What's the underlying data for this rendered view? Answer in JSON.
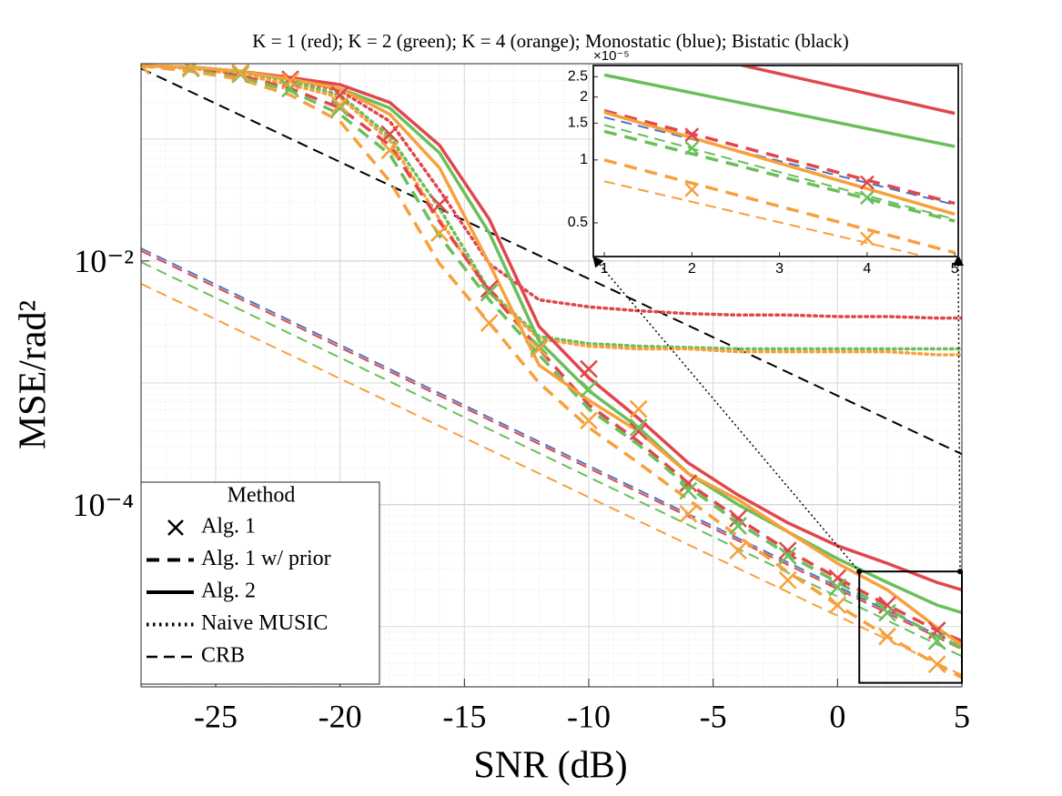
{
  "chart_data": {
    "type": "line",
    "title": "K = 1 (red); K = 2 (green); K = 4 (orange); Monostatic (blue); Bistatic (black)",
    "x_label": "SNR (dB)",
    "y_label": "MSE/rad²",
    "xlim": [
      -28,
      5
    ],
    "xticks": [
      -25,
      -20,
      -15,
      -10,
      -5,
      0,
      5
    ],
    "ylim": [
      3.2e-06,
      0.416
    ],
    "yticks": [
      {
        "value": 0.01,
        "label": "10⁻²"
      },
      {
        "value": 0.0001,
        "label": "10⁻⁴"
      }
    ],
    "log_y": true,
    "grid": true,
    "legend": {
      "title": "Method",
      "corner": "lower-left",
      "entries": [
        {
          "label": "Alg. 1",
          "style": "marker"
        },
        {
          "label": "Alg. 1 w/ prior",
          "style": "prior"
        },
        {
          "label": "Alg. 2",
          "style": "alg2"
        },
        {
          "label": "Naive MUSIC",
          "style": "music"
        },
        {
          "label": "CRB",
          "style": "crb"
        }
      ]
    },
    "zoom_region": {
      "xlim": [
        0.875,
        5
      ],
      "ylim": [
        3.45e-06,
        2.83e-05
      ]
    },
    "series": [
      {
        "color": "#4a78bd",
        "style": "crb",
        "x": [
          -28,
          5
        ],
        "values": [
          0.0127,
          6.8e-06
        ]
      },
      {
        "color": "#e0474c",
        "style": "crb",
        "x": [
          -28,
          5
        ],
        "values": [
          0.0121,
          6.5e-06
        ]
      },
      {
        "color": "#6bbf5b",
        "style": "crb",
        "x": [
          -28,
          5
        ],
        "values": [
          0.0098,
          5.7e-06
        ]
      },
      {
        "color": "#f7a03c",
        "style": "crb",
        "x": [
          -28,
          5
        ],
        "values": [
          0.0065,
          4e-06
        ]
      },
      {
        "color": "#000000",
        "style": "crb",
        "x": [
          -28,
          5
        ],
        "values": [
          0.38,
          0.00026
        ]
      },
      {
        "color": "#e0474c",
        "style": "music",
        "x": [
          -28,
          -26,
          -24,
          -22,
          -20,
          -18,
          -16,
          -14,
          -12,
          -10,
          -8,
          -6,
          -4,
          -2,
          0,
          2,
          4,
          5
        ],
        "values": [
          0.4,
          0.39,
          0.36,
          0.31,
          0.25,
          0.14,
          0.038,
          0.0095,
          0.0048,
          0.0042,
          0.0039,
          0.0037,
          0.0036,
          0.0036,
          0.0035,
          0.0035,
          0.0034,
          0.0034
        ]
      },
      {
        "color": "#6bbf5b",
        "style": "music",
        "x": [
          -28,
          -26,
          -24,
          -22,
          -20,
          -18,
          -16,
          -14,
          -12,
          -10,
          -8,
          -6,
          -4,
          -2,
          0,
          2,
          4,
          5
        ],
        "values": [
          0.4,
          0.39,
          0.35,
          0.3,
          0.23,
          0.105,
          0.027,
          0.0057,
          0.0024,
          0.0021,
          0.002,
          0.00195,
          0.0019,
          0.0019,
          0.0019,
          0.0019,
          0.0019,
          0.0019
        ]
      },
      {
        "color": "#f7a03c",
        "style": "music",
        "x": [
          -28,
          -26,
          -24,
          -22,
          -20,
          -18,
          -16,
          -14,
          -12,
          -10,
          -8,
          -6,
          -4,
          -2,
          0,
          2,
          4,
          5
        ],
        "values": [
          0.4,
          0.38,
          0.34,
          0.28,
          0.22,
          0.097,
          0.022,
          0.0055,
          0.0023,
          0.002,
          0.0019,
          0.0019,
          0.0018,
          0.0018,
          0.0018,
          0.0018,
          0.0017,
          0.0017
        ]
      },
      {
        "color": "#e0474c",
        "style": "prior",
        "x": [
          -28,
          -26,
          -24,
          -22,
          -20,
          -18,
          -16,
          -14,
          -12,
          -10,
          -8,
          -6,
          -4,
          -2,
          0,
          2,
          4,
          5
        ],
        "values": [
          0.4,
          0.38,
          0.33,
          0.26,
          0.18,
          0.089,
          0.021,
          0.0057,
          0.0019,
          0.00066,
          0.00033,
          0.00015,
          7.7e-05,
          4.2e-05,
          2.5e-05,
          1.5e-05,
          9.3e-06,
          7.6e-06
        ]
      },
      {
        "color": "#6bbf5b",
        "style": "prior",
        "x": [
          -28,
          -26,
          -24,
          -22,
          -20,
          -18,
          -16,
          -14,
          -12,
          -10,
          -8,
          -6,
          -4,
          -2,
          0,
          2,
          4,
          5
        ],
        "values": [
          0.4,
          0.37,
          0.32,
          0.25,
          0.16,
          0.075,
          0.016,
          0.0048,
          0.0017,
          0.00061,
          0.00031,
          0.00014,
          7.1e-05,
          3.9e-05,
          2.3e-05,
          1.4e-05,
          8.3e-06,
          6.7e-06
        ]
      },
      {
        "color": "#f7a03c",
        "style": "prior",
        "x": [
          -28,
          -26,
          -24,
          -22,
          -20,
          -18,
          -16,
          -14,
          -12,
          -10,
          -8,
          -6,
          -4,
          -2,
          0,
          2,
          4,
          5
        ],
        "values": [
          0.4,
          0.36,
          0.31,
          0.23,
          0.14,
          0.045,
          0.0095,
          0.0031,
          0.001,
          0.00043,
          0.00022,
          0.00011,
          5.5e-05,
          2.8e-05,
          1.5e-05,
          8.3e-06,
          4.9e-06,
          3.8e-06
        ]
      },
      {
        "color": "#e0474c",
        "style": "alg2",
        "x": [
          -28,
          -26,
          -24,
          -22,
          -20,
          -18,
          -16,
          -14,
          -12,
          -10,
          -8,
          -6,
          -4,
          -2,
          0,
          2,
          4,
          5
        ],
        "values": [
          0.4,
          0.39,
          0.36,
          0.32,
          0.28,
          0.2,
          0.089,
          0.022,
          0.0029,
          0.0011,
          0.00051,
          0.00022,
          0.00012,
          7.1e-05,
          4.6e-05,
          3.3e-05,
          2.3e-05,
          2e-05
        ]
      },
      {
        "color": "#6bbf5b",
        "style": "alg2",
        "x": [
          -28,
          -26,
          -24,
          -22,
          -20,
          -18,
          -16,
          -14,
          -12,
          -10,
          -8,
          -6,
          -4,
          -2,
          0,
          2,
          4,
          5
        ],
        "values": [
          0.4,
          0.39,
          0.36,
          0.31,
          0.26,
          0.18,
          0.077,
          0.017,
          0.0022,
          0.00086,
          0.00043,
          0.00018,
          0.0001,
          6e-05,
          3.6e-05,
          2.3e-05,
          1.5e-05,
          1.3e-05
        ]
      },
      {
        "color": "#f7a03c",
        "style": "alg2",
        "x": [
          -28,
          -26,
          -24,
          -22,
          -20,
          -18,
          -16,
          -14,
          -12,
          -10,
          -8,
          -6,
          -4,
          -2,
          0,
          2,
          4,
          5
        ],
        "values": [
          0.4,
          0.39,
          0.36,
          0.31,
          0.26,
          0.16,
          0.058,
          0.0095,
          0.0014,
          0.00072,
          0.0004,
          0.00018,
          0.00011,
          6e-05,
          3.3e-05,
          2e-05,
          9.8e-06,
          7e-06
        ]
      },
      {
        "color": "#e0474c",
        "style": "marker",
        "x": [
          -28,
          -26,
          -24,
          -22,
          -20,
          -18,
          -16,
          -14,
          -12,
          -10,
          -8,
          -6,
          -4,
          -2,
          0,
          2,
          4
        ],
        "values": [
          0.4,
          0.39,
          0.35,
          0.31,
          0.23,
          0.11,
          0.029,
          0.0059,
          0.0019,
          0.0013,
          0.0004,
          0.00015,
          7.7e-05,
          4.2e-05,
          2.5e-05,
          1.5e-05,
          9.3e-06
        ]
      },
      {
        "color": "#6bbf5b",
        "style": "marker",
        "x": [
          -28,
          -26,
          -24,
          -22,
          -20,
          -18,
          -16,
          -14,
          -12,
          -10,
          -8,
          -6,
          -4,
          -2,
          0,
          2,
          4
        ],
        "values": [
          0.4,
          0.38,
          0.34,
          0.26,
          0.18,
          0.081,
          0.017,
          0.0055,
          0.002,
          0.00089,
          0.00043,
          0.00013,
          6.7e-05,
          3.8e-05,
          2.1e-05,
          1.3e-05,
          7.6e-06
        ]
      },
      {
        "color": "#f7a03c",
        "style": "marker",
        "x": [
          -28,
          -26,
          -24,
          -22,
          -20,
          -18,
          -16,
          -14,
          -12,
          -10,
          -8,
          -6,
          -4,
          -2,
          0,
          2,
          4
        ],
        "values": [
          0.4,
          0.39,
          0.35,
          0.3,
          0.19,
          0.081,
          0.017,
          0.0031,
          0.0019,
          0.00049,
          0.00061,
          8.4e-05,
          4.2e-05,
          2.4e-05,
          1.5e-05,
          8.3e-06,
          4.9e-06
        ]
      }
    ],
    "inset": {
      "type": "line",
      "exponent_label": "×10⁻⁵",
      "xlim": [
        0.875,
        5.04
      ],
      "xticks": [
        1,
        2,
        3,
        4,
        5
      ],
      "ylim": [
        0.345,
        2.83
      ],
      "yticks": [
        0.5,
        1,
        1.5,
        2,
        2.5
      ],
      "log_y": true,
      "grid": false,
      "series": [
        {
          "color": "#4a78bd",
          "style": "crb",
          "x": [
            1,
            5
          ],
          "values": [
            1.6,
            0.61
          ]
        },
        {
          "color": "#6bbf5b",
          "style": "crb",
          "x": [
            1,
            5
          ],
          "values": [
            1.47,
            0.52
          ]
        },
        {
          "color": "#f7a03c",
          "style": "crb",
          "x": [
            1,
            5
          ],
          "values": [
            0.79,
            0.32
          ]
        },
        {
          "color": "#e0474c",
          "style": "prior",
          "x": [
            1,
            5
          ],
          "values": [
            1.72,
            0.62
          ]
        },
        {
          "color": "#6bbf5b",
          "style": "prior",
          "x": [
            1,
            5
          ],
          "values": [
            1.37,
            0.51
          ]
        },
        {
          "color": "#f7a03c",
          "style": "prior",
          "x": [
            1,
            5
          ],
          "values": [
            1.0,
            0.36
          ]
        },
        {
          "color": "#e0474c",
          "style": "alg2",
          "x": [
            1,
            5
          ],
          "values": [
            4.0,
            1.67
          ]
        },
        {
          "color": "#6bbf5b",
          "style": "alg2",
          "x": [
            1,
            5
          ],
          "values": [
            2.55,
            1.16
          ]
        },
        {
          "color": "#f7a03c",
          "style": "alg2",
          "x": [
            1,
            5
          ],
          "values": [
            1.69,
            0.55
          ]
        },
        {
          "color": "#e0474c",
          "style": "marker",
          "x": [
            2,
            4
          ],
          "values": [
            1.32,
            0.78
          ]
        },
        {
          "color": "#6bbf5b",
          "style": "marker",
          "x": [
            2,
            4
          ],
          "values": [
            1.14,
            0.66
          ]
        },
        {
          "color": "#f7a03c",
          "style": "marker",
          "x": [
            2,
            4
          ],
          "values": [
            0.72,
            0.42
          ]
        }
      ]
    }
  }
}
